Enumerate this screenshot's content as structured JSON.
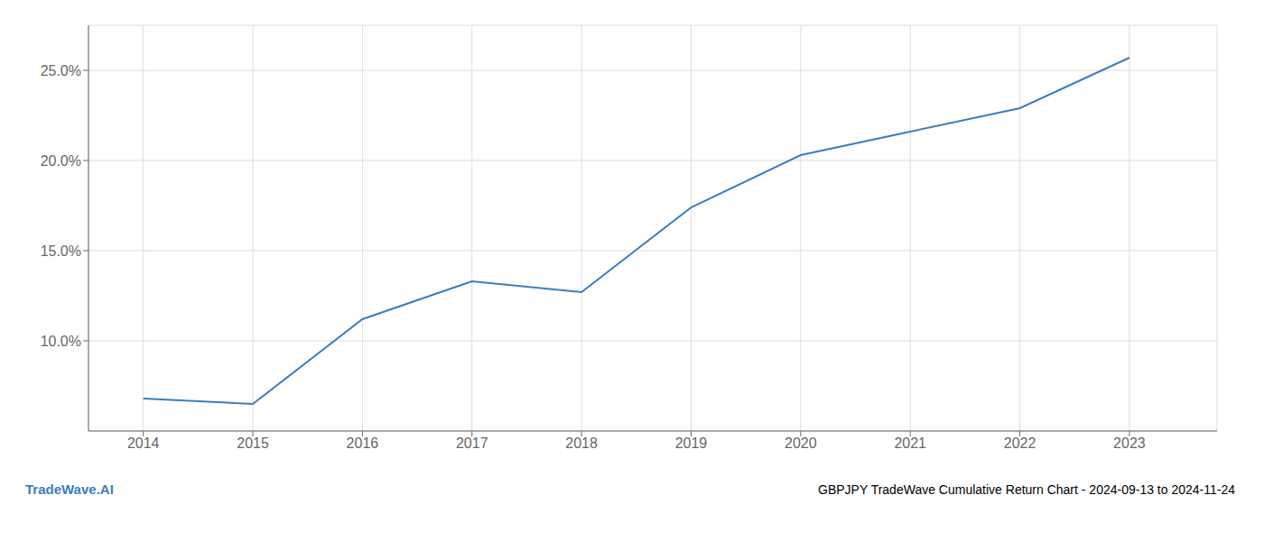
{
  "chart_data": {
    "type": "line",
    "title": "GBPJPY TradeWave Cumulative Return Chart - 2024-09-13 to 2024-11-24",
    "annotations": [
      {
        "text": "TradeWave.AI",
        "color": "#3a7ebf"
      }
    ],
    "x": [
      2014,
      2015,
      2016,
      2017,
      2018,
      2019,
      2020,
      2021,
      2022,
      2023
    ],
    "values": [
      6.8,
      6.5,
      11.2,
      13.3,
      12.7,
      17.4,
      20.3,
      21.6,
      22.9,
      25.7
    ],
    "color": "#3a7ebf",
    "xlim": [
      2013.5,
      2023.8
    ],
    "xticks": [
      2014,
      2015,
      2016,
      2017,
      2018,
      2019,
      2020,
      2021,
      2022,
      2023
    ],
    "ylim": [
      5.0,
      27.5
    ],
    "yticks": [
      {
        "value": 10.0,
        "label": "10.0%"
      },
      {
        "value": 15.0,
        "label": "15.0%"
      },
      {
        "value": 20.0,
        "label": "20.0%"
      },
      {
        "value": 25.0,
        "label": "25.0%"
      }
    ],
    "grid": true
  }
}
